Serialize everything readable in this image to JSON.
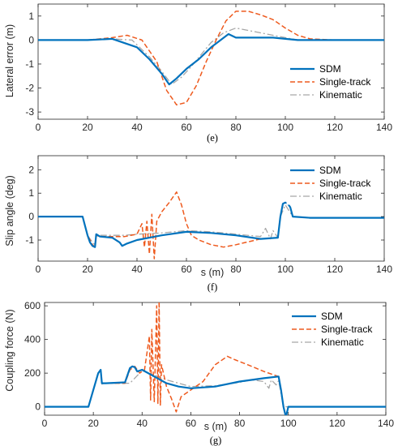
{
  "colors": {
    "sdm": "#0072BD",
    "single_track": "#EE5A1E",
    "kinematic": "#A6A6A6",
    "axis": "#262626"
  },
  "chart_data": [
    {
      "type": "line",
      "panel_label": "(e)",
      "xlabel": "",
      "ylabel": "Lateral error (m)",
      "xlim": [
        0,
        140
      ],
      "ylim": [
        -3.3,
        1.5
      ],
      "xticks": [
        0,
        20,
        40,
        60,
        80,
        100,
        120,
        140
      ],
      "yticks": [
        -3,
        -2,
        -1,
        0,
        1
      ],
      "legend_position": "bottom-right",
      "series": [
        {
          "name": "SDM",
          "style": "solid",
          "x": [
            0,
            20,
            30,
            40,
            45,
            50,
            53,
            56,
            60,
            65,
            70,
            77,
            80,
            95,
            100,
            105,
            120,
            140
          ],
          "y": [
            0,
            0,
            0.05,
            -0.3,
            -0.8,
            -1.4,
            -1.85,
            -1.6,
            -1.2,
            -0.8,
            -0.3,
            0.25,
            0.1,
            0.1,
            0.05,
            0,
            0,
            0
          ]
        },
        {
          "name": "Single-track",
          "style": "dashed",
          "x": [
            0,
            20,
            30,
            36,
            42,
            48,
            52,
            56,
            60,
            64,
            68,
            72,
            76,
            80,
            85,
            90,
            95,
            100,
            105,
            110,
            120,
            140
          ],
          "y": [
            0,
            0,
            0.1,
            0.2,
            0,
            -0.9,
            -2.1,
            -2.7,
            -2.6,
            -1.9,
            -0.9,
            0,
            0.8,
            1.2,
            1.2,
            1.05,
            0.85,
            0.5,
            0.2,
            0.05,
            0,
            0
          ]
        },
        {
          "name": "Kinematic",
          "style": "dashdot",
          "x": [
            0,
            20,
            30,
            38,
            45,
            50,
            54,
            58,
            62,
            66,
            70,
            75,
            80,
            90,
            95,
            100,
            105,
            140
          ],
          "y": [
            0,
            0,
            0.05,
            0,
            -0.7,
            -1.3,
            -1.85,
            -1.55,
            -1.1,
            -0.6,
            -0.1,
            0.3,
            0.5,
            0.3,
            0.2,
            0.1,
            0,
            0
          ]
        }
      ]
    },
    {
      "type": "line",
      "panel_label": "(f)",
      "xlabel": "s (m)",
      "ylabel": "Slip angle (deg)",
      "xlim": [
        0,
        140
      ],
      "ylim": [
        -1.9,
        2.6
      ],
      "xticks": [
        0,
        20,
        40,
        60,
        80,
        100,
        120,
        140
      ],
      "yticks": [
        -1,
        0,
        1,
        2
      ],
      "legend_position": "top-right",
      "series": [
        {
          "name": "SDM",
          "style": "solid",
          "x": [
            0,
            18,
            20,
            21,
            22,
            23,
            23.5,
            25,
            30,
            33,
            34,
            36,
            40,
            50,
            60,
            70,
            80,
            90,
            97,
            98,
            99,
            100,
            101,
            102,
            103,
            110,
            120,
            140
          ],
          "y": [
            0,
            0,
            -0.8,
            -1.1,
            -1.25,
            -1.3,
            -0.75,
            -0.85,
            -0.9,
            -1.1,
            -1.25,
            -1.15,
            -1.0,
            -0.8,
            -0.65,
            -0.7,
            -0.8,
            -0.95,
            -0.9,
            0.0,
            0.55,
            0.6,
            0.55,
            0.4,
            0,
            -0.05,
            -0.05,
            -0.05
          ]
        },
        {
          "name": "Single-track",
          "style": "dashed",
          "x": [
            0,
            18,
            20,
            22,
            23,
            23.5,
            25,
            35,
            40,
            42,
            43,
            44,
            45,
            46,
            47,
            48,
            50,
            53,
            56,
            58,
            60,
            62,
            65,
            70,
            75,
            80,
            90,
            97,
            98,
            99,
            100,
            101,
            102,
            103,
            110,
            140
          ],
          "y": [
            0,
            0,
            -0.8,
            -1.2,
            -1.3,
            -0.8,
            -0.85,
            -0.85,
            -0.75,
            -0.3,
            -1.3,
            -0.2,
            -1.6,
            0.1,
            -1.8,
            -0.2,
            0.2,
            0.6,
            1.05,
            0.5,
            -0.3,
            -0.8,
            -1.0,
            -1.2,
            -1.3,
            -1.2,
            -0.95,
            -0.9,
            0,
            0.55,
            0.6,
            0.55,
            0.4,
            0,
            -0.05,
            -0.05
          ]
        },
        {
          "name": "Kinematic",
          "style": "dashdot",
          "x": [
            0,
            18,
            20,
            22,
            23,
            23.5,
            25,
            35,
            40,
            50,
            60,
            70,
            80,
            90,
            92,
            94,
            95,
            97,
            98,
            100,
            103,
            110,
            140
          ],
          "y": [
            0,
            0,
            -0.8,
            -1.1,
            -1.2,
            -0.75,
            -0.8,
            -0.8,
            -0.75,
            -0.7,
            -0.6,
            -0.65,
            -0.75,
            -0.85,
            -0.5,
            -0.95,
            -0.6,
            -0.9,
            0,
            0.5,
            0,
            -0.05,
            -0.05
          ]
        }
      ]
    },
    {
      "type": "line",
      "panel_label": "(g)",
      "xlabel": "s (m)",
      "ylabel": "Coupling force (N)",
      "xlim": [
        0,
        140
      ],
      "ylim": [
        -50,
        620
      ],
      "xticks": [
        0,
        20,
        40,
        60,
        80,
        100,
        120,
        140
      ],
      "yticks": [
        0,
        200,
        400,
        600
      ],
      "legend_position": "top-right",
      "series": [
        {
          "name": "SDM",
          "style": "solid",
          "x": [
            0,
            18,
            20,
            22,
            23,
            23.5,
            25,
            33,
            35,
            36,
            37,
            38,
            40,
            45,
            50,
            55,
            60,
            70,
            80,
            90,
            96,
            97,
            98,
            99,
            100,
            140
          ],
          "y": [
            0,
            0,
            100,
            200,
            220,
            140,
            140,
            145,
            230,
            240,
            235,
            210,
            220,
            180,
            140,
            120,
            110,
            120,
            150,
            170,
            180,
            100,
            0,
            -60,
            0,
            0
          ]
        },
        {
          "name": "Single-track",
          "style": "dashed",
          "x": [
            0,
            18,
            20,
            22,
            23,
            23.5,
            25,
            33,
            35,
            37,
            39,
            41,
            43,
            43.5,
            44,
            45,
            46,
            46.5,
            47,
            47.5,
            48,
            50,
            52,
            54,
            56,
            60,
            65,
            70,
            75,
            78,
            85,
            90,
            96,
            97,
            98,
            99,
            100,
            140
          ],
          "y": [
            0,
            0,
            100,
            200,
            220,
            140,
            140,
            140,
            220,
            240,
            200,
            220,
            420,
            40,
            460,
            30,
            600,
            20,
            630,
            10,
            250,
            120,
            50,
            -30,
            60,
            100,
            150,
            250,
            300,
            280,
            240,
            210,
            180,
            100,
            0,
            -60,
            0,
            0
          ]
        },
        {
          "name": "Kinematic",
          "style": "dashdot",
          "x": [
            0,
            18,
            20,
            22,
            23,
            23.5,
            25,
            35,
            40,
            50,
            60,
            70,
            80,
            85,
            90,
            92,
            93,
            95,
            96,
            98,
            100,
            140
          ],
          "y": [
            0,
            0,
            100,
            200,
            215,
            135,
            140,
            140,
            215,
            160,
            120,
            125,
            145,
            160,
            150,
            110,
            160,
            130,
            155,
            0,
            0,
            0
          ]
        }
      ]
    }
  ]
}
